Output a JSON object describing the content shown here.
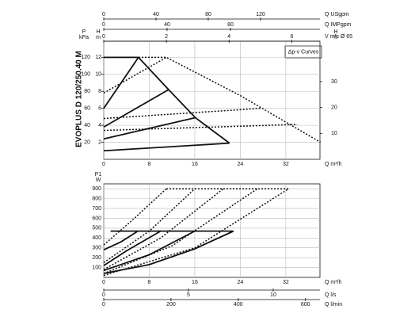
{
  "chart_data": [
    {
      "type": "line",
      "title": "EVOPLUS D 120/250.40 M",
      "annotation": "Δp-v Curves",
      "xlabel": "Q m³/h",
      "ylabel": "H",
      "yunit": "m",
      "xlim": [
        0,
        38
      ],
      "ylim": [
        0,
        13.9
      ],
      "xticks": [
        0,
        8,
        16,
        24,
        32
      ],
      "yticks": [
        2,
        4,
        6,
        8,
        10,
        12
      ],
      "grid": true,
      "extra_axes": [
        {
          "side": "top",
          "label": "Q USgpm",
          "lim": [
            0,
            165.5
          ],
          "ticks": [
            0,
            40,
            80,
            120
          ]
        },
        {
          "side": "top",
          "label": "Q IMPgpm",
          "lim": [
            0,
            136.5
          ],
          "ticks": [
            0,
            40,
            80
          ]
        },
        {
          "side": "top",
          "label": "V m/s Ø 65",
          "lim": [
            0,
            6.9
          ],
          "ticks": [
            0,
            2,
            4,
            6
          ]
        },
        {
          "side": "left",
          "label": "P",
          "unit": "kPa",
          "lim": [
            0,
            139
          ],
          "ticks": [
            20,
            40,
            60,
            80,
            100,
            120
          ]
        },
        {
          "side": "right",
          "label": "H",
          "unit": "ft",
          "lim": [
            0,
            45.6
          ],
          "ticks": [
            10,
            20,
            30
          ]
        }
      ],
      "series": [
        {
          "color": "#111111",
          "style": "solid",
          "x": [
            0,
            6.1,
            11.4,
            16.1,
            22.1
          ],
          "values": [
            12,
            12,
            8.2,
            4.9,
            1.9
          ]
        },
        {
          "color": "#111111",
          "style": "solid",
          "x": [
            0,
            6.1
          ],
          "values": [
            6.0,
            12
          ]
        },
        {
          "color": "#111111",
          "style": "solid",
          "x": [
            0,
            11.4
          ],
          "values": [
            3.8,
            8.2
          ]
        },
        {
          "color": "#111111",
          "style": "solid",
          "x": [
            0,
            16.1
          ],
          "values": [
            2.4,
            4.9
          ]
        },
        {
          "color": "#111111",
          "style": "solid",
          "x": [
            0,
            22.1
          ],
          "values": [
            1.0,
            1.9
          ]
        },
        {
          "color": "#111111",
          "style": "dotted",
          "x": [
            0,
            11,
            24,
            38.1
          ],
          "values": [
            12,
            12,
            7.5,
            2
          ]
        },
        {
          "color": "#111111",
          "style": "dotted",
          "x": [
            0,
            11
          ],
          "values": [
            7.8,
            12
          ]
        },
        {
          "color": "#111111",
          "style": "dotted",
          "x": [
            0,
            27.7
          ],
          "values": [
            4.8,
            6.0
          ]
        },
        {
          "color": "#111111",
          "style": "dotted",
          "x": [
            0,
            34
          ],
          "values": [
            3.4,
            4.1
          ]
        }
      ]
    },
    {
      "type": "line",
      "xlabel": "Q m³/h",
      "ylabel": "P1",
      "yunit": "W",
      "xlim": [
        0,
        38
      ],
      "ylim": [
        0,
        950
      ],
      "xticks": [
        0,
        8,
        16,
        24,
        32
      ],
      "yticks": [
        100,
        200,
        300,
        400,
        500,
        600,
        700,
        800,
        900
      ],
      "grid": true,
      "extra_axes": [
        {
          "side": "bottom",
          "label": "Q l/s",
          "lim": [
            0,
            12.76
          ],
          "ticks": [
            0,
            5,
            10
          ]
        },
        {
          "side": "bottom",
          "label": "Q l/min",
          "lim": [
            0,
            643
          ],
          "ticks": [
            0,
            200,
            400,
            600
          ]
        }
      ],
      "series": [
        {
          "color": "#111111",
          "style": "solid",
          "x": [
            1.2,
            22.8
          ],
          "values": [
            470,
            470
          ]
        },
        {
          "color": "#111111",
          "style": "solid",
          "x": [
            0,
            3,
            6
          ],
          "values": [
            280,
            360,
            470
          ]
        },
        {
          "color": "#111111",
          "style": "solid",
          "x": [
            0,
            4,
            10
          ],
          "values": [
            120,
            270,
            470
          ]
        },
        {
          "color": "#111111",
          "style": "solid",
          "x": [
            0,
            8,
            16
          ],
          "values": [
            70,
            230,
            470
          ]
        },
        {
          "color": "#111111",
          "style": "solid",
          "x": [
            0,
            8,
            16,
            22.8
          ],
          "values": [
            40,
            130,
            290,
            470
          ]
        },
        {
          "color": "#111111",
          "style": "dotted",
          "x": [
            11,
            32.5
          ],
          "values": [
            900,
            900
          ]
        },
        {
          "color": "#111111",
          "style": "dotted",
          "x": [
            0,
            5,
            11
          ],
          "values": [
            330,
            580,
            900
          ]
        },
        {
          "color": "#111111",
          "style": "dotted",
          "x": [
            0,
            8,
            16
          ],
          "values": [
            150,
            470,
            900
          ]
        },
        {
          "color": "#111111",
          "style": "dotted",
          "x": [
            0,
            10,
            21
          ],
          "values": [
            80,
            400,
            900
          ]
        },
        {
          "color": "#111111",
          "style": "dotted",
          "x": [
            0,
            12,
            27
          ],
          "values": [
            40,
            320,
            900
          ]
        },
        {
          "color": "#111111",
          "style": "dotted",
          "x": [
            0,
            16,
            32.5
          ],
          "values": [
            20,
            300,
            900
          ]
        }
      ]
    }
  ]
}
